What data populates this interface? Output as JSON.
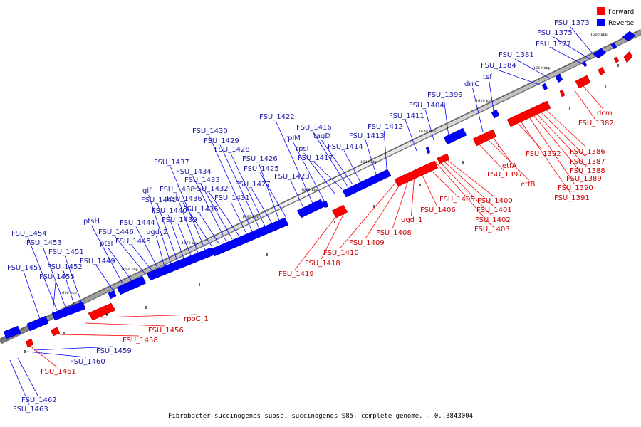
{
  "caption": "Fibrobacter succinogenes subsp. succinogenes S85, complete genome. - 0..3843004",
  "legend": {
    "forward_label": "Forward",
    "reverse_label": "Reverse",
    "forward_color": "#ff0000",
    "reverse_color": "#0000ff",
    "forward_label_color": "#cc0000",
    "reverse_label_color": "#1a1aa6"
  },
  "ticks": [
    "1690 kbp",
    "1680 kbp",
    "1670 kbp",
    "1660 kbp",
    "1650 kbp",
    "1640 kbp",
    "1630 kbp",
    "1620 kbp",
    "1610 kbp",
    "1600 kbp"
  ],
  "reverse_labels": [
    "FSU_1373",
    "FSU_1375",
    "FSU_1377",
    "FSU_1381",
    "FSU_1384",
    "tsf",
    "drrC",
    "FSU_1399",
    "FSU_1404",
    "FSU_1411",
    "FSU_1412",
    "FSU_1413",
    "FSU_1414",
    "tagD",
    "FSU_1416",
    "FSU_1417",
    "rpsI",
    "rplM",
    "FSU_1422",
    "FSU_1423",
    "FSU_1425",
    "FSU_1426",
    "FSU_1427",
    "FSU_1428",
    "FSU_1429",
    "FSU_1430",
    "FSU_1431",
    "FSU_1432",
    "FSU_1433",
    "FSU_1434",
    "FSU_1435",
    "FSU_1436",
    "FSU_1437",
    "FSU_1438",
    "FSU_1439",
    "FSU_1440",
    "FSU_1441",
    "glf",
    "ugd_2",
    "FSU_1444",
    "FSU_1445",
    "FSU_1446",
    "ptsI",
    "ptsH",
    "FSU_1449",
    "FSU_1451",
    "FSU_1452",
    "FSU_1453",
    "FSU_1454",
    "FSU_1455",
    "FSU_1457",
    "FSU_1459",
    "FSU_1460",
    "FSU_1462",
    "FSU_1463"
  ],
  "forward_labels": [
    "dcm",
    "FSU_1382",
    "FSU_1386",
    "FSU_1387",
    "FSU_1388",
    "FSU_1389",
    "FSU_1390",
    "FSU_1391",
    "FSU_1392",
    "etfA",
    "etfB",
    "FSU_1397",
    "FSU_1400",
    "FSU_1401",
    "FSU_1402",
    "FSU_1403",
    "FSU_1405",
    "FSU_1406",
    "ugd_1",
    "FSU_1408",
    "FSU_1409",
    "FSU_1410",
    "FSU_1418",
    "FSU_1419",
    "rpoC_1",
    "FSU_1456",
    "FSU_1458",
    "FSU_1461"
  ]
}
